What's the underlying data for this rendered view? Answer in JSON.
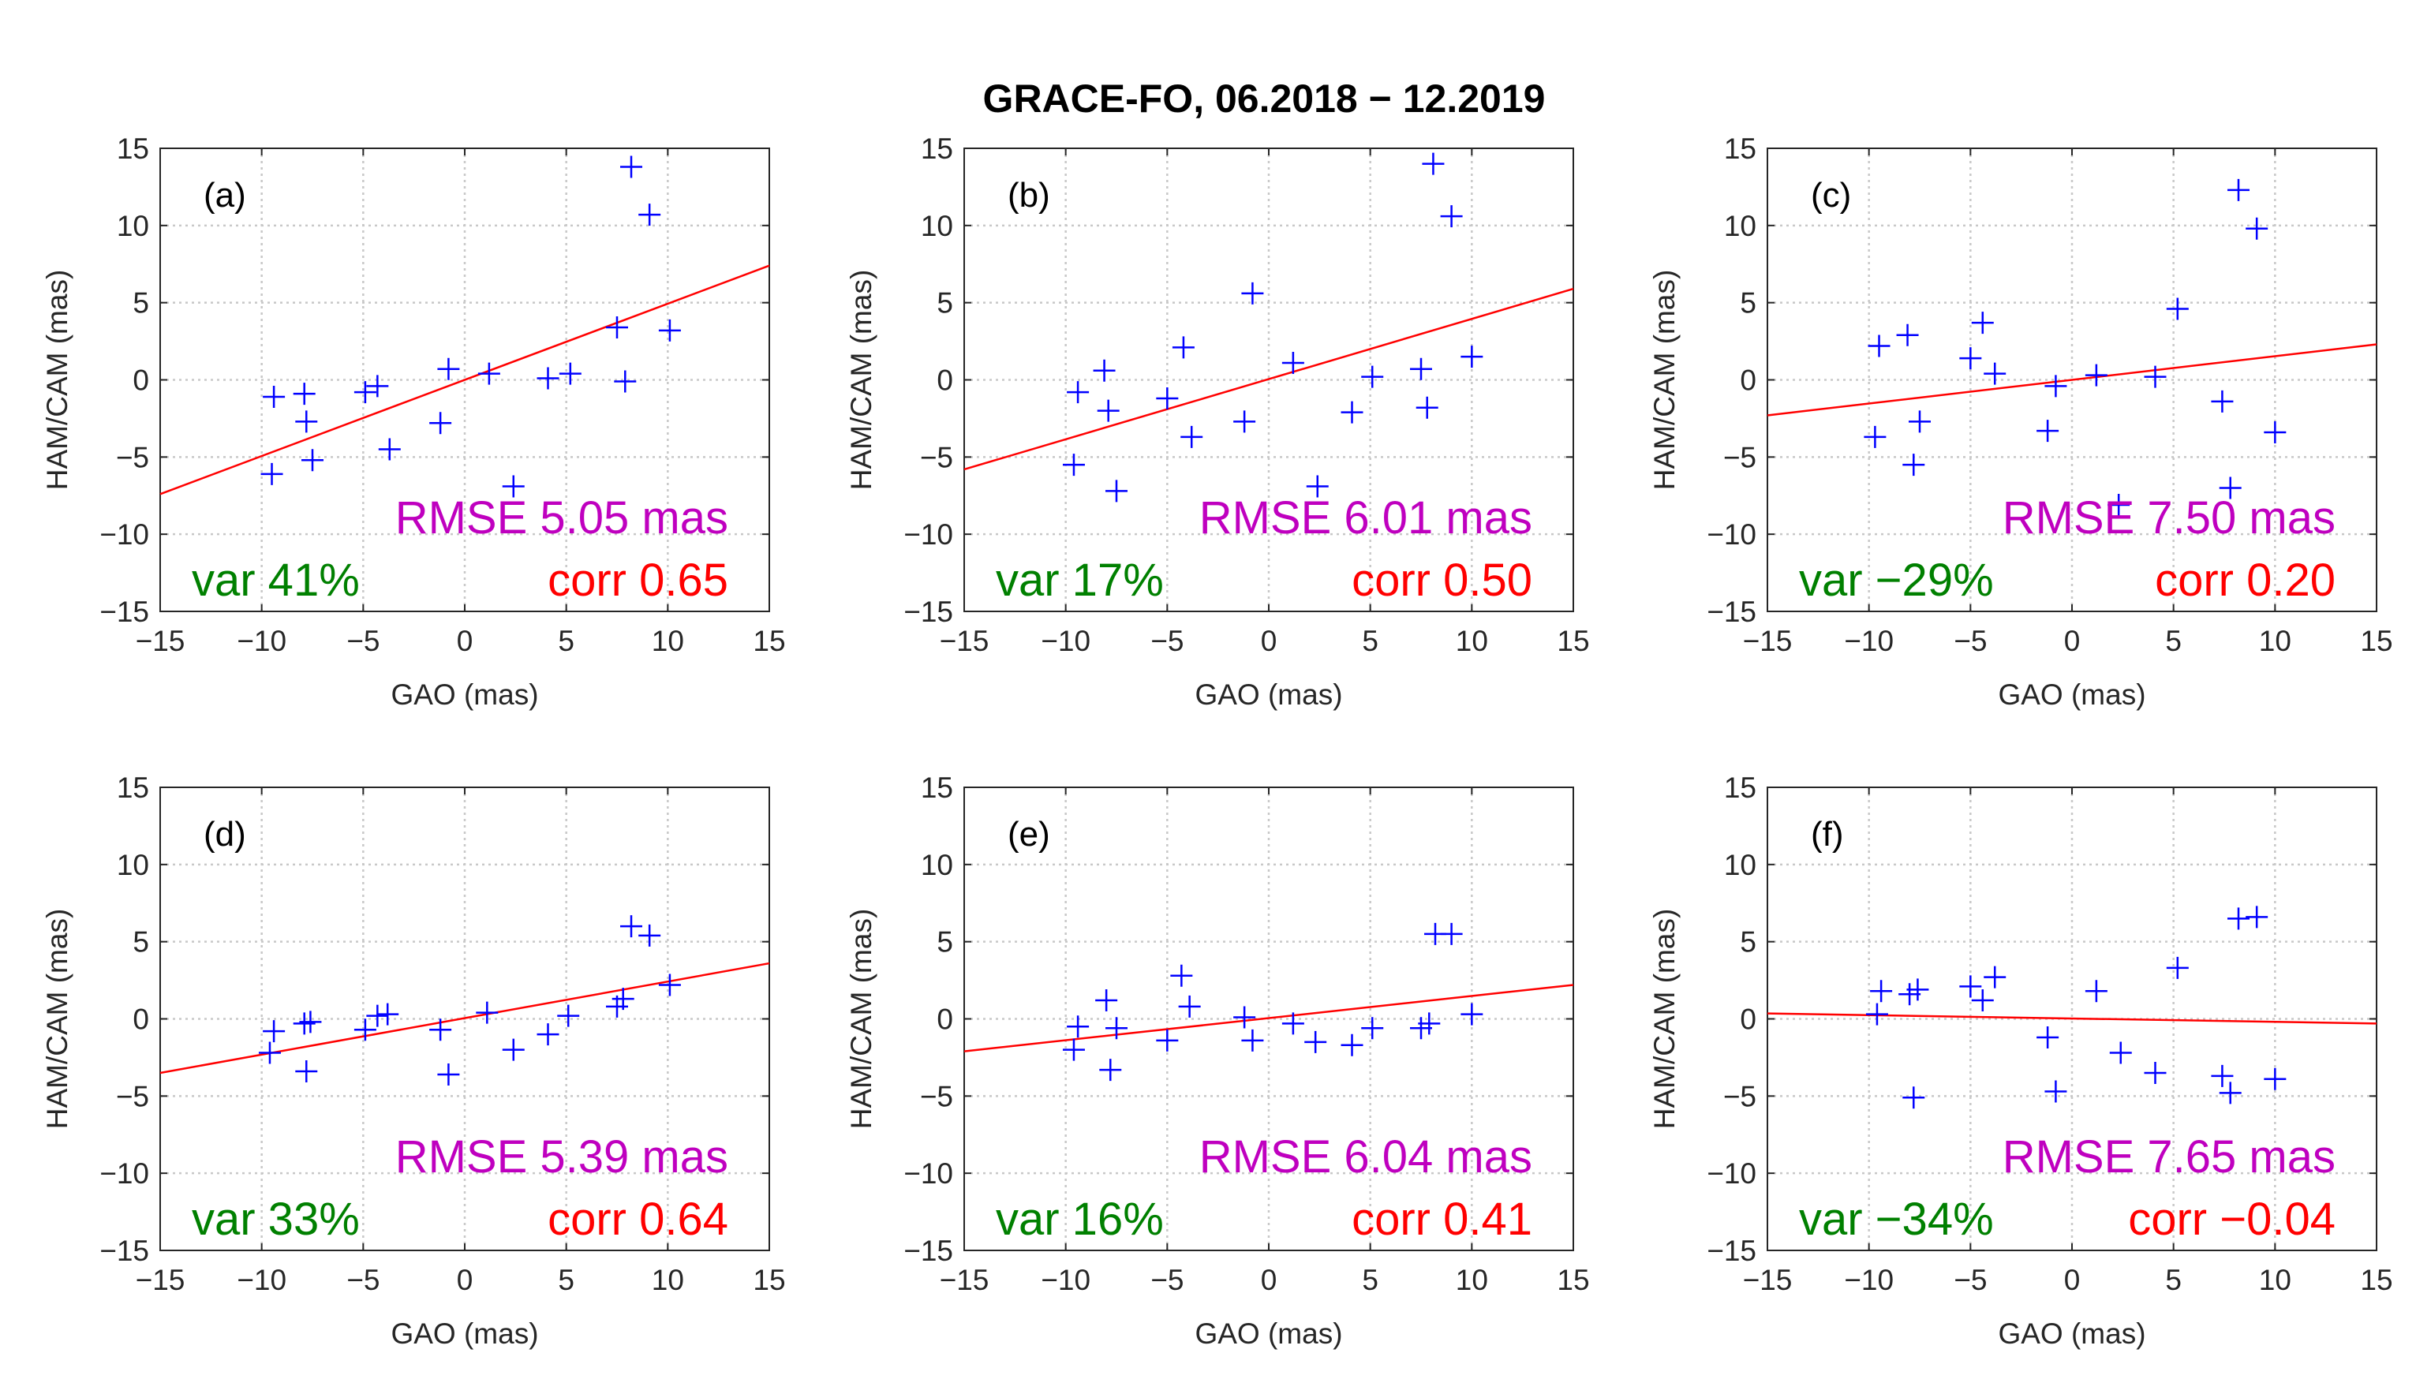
{
  "figure": {
    "title": "GRACE-FO, 06.2018 − 12.2019",
    "colors": {
      "points": "#0000ff",
      "fit": "#ff0000",
      "rmse": "#bf00bf",
      "var": "#008000",
      "corr": "#ff0000",
      "grid": "#c8c8c8",
      "axis": "#262626"
    }
  },
  "chart_data": [
    {
      "type": "scatter",
      "panel": "(a)",
      "xlabel": "GAO (mas)",
      "ylabel": "HAM/CAM (mas)",
      "xlim": [
        -15,
        15
      ],
      "ylim": [
        -15,
        15
      ],
      "xticks": [
        -15,
        -10,
        -5,
        0,
        5,
        10,
        15
      ],
      "yticks": [
        -15,
        -10,
        -5,
        0,
        5,
        10,
        15
      ],
      "grid": true,
      "points": [
        [
          -9.5,
          -6.1
        ],
        [
          -9.4,
          -1.1
        ],
        [
          -7.9,
          -0.9
        ],
        [
          -7.8,
          -2.7
        ],
        [
          -7.5,
          -5.2
        ],
        [
          -4.9,
          -0.8
        ],
        [
          -4.3,
          -0.4
        ],
        [
          -3.7,
          -4.5
        ],
        [
          -1.2,
          -2.8
        ],
        [
          -0.8,
          0.7
        ],
        [
          1.2,
          0.4
        ],
        [
          2.4,
          -6.9
        ],
        [
          4.1,
          0.1
        ],
        [
          5.2,
          0.4
        ],
        [
          7.5,
          3.4
        ],
        [
          7.9,
          -0.1
        ],
        [
          8.2,
          13.8
        ],
        [
          9.1,
          10.7
        ],
        [
          10.1,
          3.2
        ]
      ],
      "fit": {
        "x": [
          -15,
          15
        ],
        "y": [
          -7.4,
          7.4
        ]
      },
      "rmse": "RMSE 5.05 mas",
      "var": "var 41%",
      "corr": "corr 0.65"
    },
    {
      "type": "scatter",
      "panel": "(b)",
      "xlabel": "GAO (mas)",
      "ylabel": "HAM/CAM (mas)",
      "xlim": [
        -15,
        15
      ],
      "ylim": [
        -15,
        15
      ],
      "xticks": [
        -15,
        -10,
        -5,
        0,
        5,
        10,
        15
      ],
      "yticks": [
        -15,
        -10,
        -5,
        0,
        5,
        10,
        15
      ],
      "grid": true,
      "points": [
        [
          -9.6,
          -5.5
        ],
        [
          -9.4,
          -0.8
        ],
        [
          -8.1,
          0.6
        ],
        [
          -7.9,
          -2.0
        ],
        [
          -7.5,
          -7.2
        ],
        [
          -5.0,
          -1.2
        ],
        [
          -4.2,
          2.1
        ],
        [
          -3.8,
          -3.7
        ],
        [
          -1.2,
          -2.7
        ],
        [
          -0.8,
          5.6
        ],
        [
          1.2,
          1.1
        ],
        [
          2.4,
          -6.9
        ],
        [
          4.1,
          -2.1
        ],
        [
          5.1,
          0.2
        ],
        [
          7.5,
          0.7
        ],
        [
          7.8,
          -1.8
        ],
        [
          8.1,
          14.0
        ],
        [
          9.0,
          10.6
        ],
        [
          10.0,
          1.5
        ]
      ],
      "fit": {
        "x": [
          -15,
          15
        ],
        "y": [
          -5.8,
          5.9
        ]
      },
      "rmse": "RMSE 6.01 mas",
      "var": "var 17%",
      "corr": "corr 0.50"
    },
    {
      "type": "scatter",
      "panel": "(c)",
      "xlabel": "GAO (mas)",
      "ylabel": "HAM/CAM (mas)",
      "xlim": [
        -15,
        15
      ],
      "ylim": [
        -15,
        15
      ],
      "xticks": [
        -15,
        -10,
        -5,
        0,
        5,
        10,
        15
      ],
      "yticks": [
        -15,
        -10,
        -5,
        0,
        5,
        10,
        15
      ],
      "grid": true,
      "points": [
        [
          -9.7,
          -3.7
        ],
        [
          -9.5,
          2.2
        ],
        [
          -8.1,
          2.9
        ],
        [
          -7.8,
          -5.5
        ],
        [
          -7.5,
          -2.7
        ],
        [
          -5.0,
          1.4
        ],
        [
          -4.4,
          3.7
        ],
        [
          -3.8,
          0.4
        ],
        [
          -1.2,
          -3.3
        ],
        [
          -0.8,
          -0.4
        ],
        [
          1.2,
          0.3
        ],
        [
          2.3,
          -8.1
        ],
        [
          4.1,
          0.2
        ],
        [
          5.2,
          4.6
        ],
        [
          7.4,
          -1.4
        ],
        [
          7.8,
          -7.0
        ],
        [
          8.2,
          12.3
        ],
        [
          9.1,
          9.8
        ],
        [
          10.0,
          -3.4
        ]
      ],
      "fit": {
        "x": [
          -15,
          15
        ],
        "y": [
          -2.3,
          2.3
        ]
      },
      "rmse": "RMSE 7.50 mas",
      "var": "var −29%",
      "corr": "corr 0.20"
    },
    {
      "type": "scatter",
      "panel": "(d)",
      "xlabel": "GAO (mas)",
      "ylabel": "HAM/CAM (mas)",
      "xlim": [
        -15,
        15
      ],
      "ylim": [
        -15,
        15
      ],
      "xticks": [
        -15,
        -10,
        -5,
        0,
        5,
        10,
        15
      ],
      "yticks": [
        -15,
        -10,
        -5,
        0,
        5,
        10,
        15
      ],
      "grid": true,
      "points": [
        [
          -9.6,
          -2.2
        ],
        [
          -9.4,
          -0.8
        ],
        [
          -7.9,
          -0.3
        ],
        [
          -7.6,
          -0.2
        ],
        [
          -7.8,
          -3.4
        ],
        [
          -4.9,
          -0.7
        ],
        [
          -4.3,
          0.2
        ],
        [
          -3.8,
          0.3
        ],
        [
          -1.2,
          -0.7
        ],
        [
          -0.8,
          -3.6
        ],
        [
          1.1,
          0.4
        ],
        [
          2.4,
          -2.0
        ],
        [
          4.1,
          -1.0
        ],
        [
          5.1,
          0.2
        ],
        [
          7.5,
          0.8
        ],
        [
          7.8,
          1.3
        ],
        [
          8.2,
          6.0
        ],
        [
          9.1,
          5.4
        ],
        [
          10.1,
          2.2
        ]
      ],
      "fit": {
        "x": [
          -15,
          15
        ],
        "y": [
          -3.5,
          3.6
        ]
      },
      "rmse": "RMSE 5.39 mas",
      "var": "var 33%",
      "corr": "corr 0.64"
    },
    {
      "type": "scatter",
      "panel": "(e)",
      "xlabel": "GAO (mas)",
      "ylabel": "HAM/CAM (mas)",
      "xlim": [
        -15,
        15
      ],
      "ylim": [
        -15,
        15
      ],
      "xticks": [
        -15,
        -10,
        -5,
        0,
        5,
        10,
        15
      ],
      "yticks": [
        -15,
        -10,
        -5,
        0,
        5,
        10,
        15
      ],
      "grid": true,
      "points": [
        [
          -9.6,
          -2.0
        ],
        [
          -9.4,
          -0.5
        ],
        [
          -8.0,
          1.2
        ],
        [
          -7.8,
          -3.3
        ],
        [
          -7.5,
          -0.6
        ],
        [
          -5.0,
          -1.4
        ],
        [
          -4.3,
          2.8
        ],
        [
          -3.9,
          0.8
        ],
        [
          -1.2,
          0.1
        ],
        [
          -0.8,
          -1.4
        ],
        [
          1.2,
          -0.3
        ],
        [
          2.3,
          -1.5
        ],
        [
          4.1,
          -1.7
        ],
        [
          5.1,
          -0.6
        ],
        [
          7.5,
          -0.6
        ],
        [
          7.9,
          -0.3
        ],
        [
          8.2,
          5.5
        ],
        [
          9.0,
          5.5
        ],
        [
          10.0,
          0.3
        ]
      ],
      "fit": {
        "x": [
          -15,
          15
        ],
        "y": [
          -2.1,
          2.2
        ]
      },
      "rmse": "RMSE 6.04 mas",
      "var": "var 16%",
      "corr": "corr 0.41"
    },
    {
      "type": "scatter",
      "panel": "(f)",
      "xlabel": "GAO (mas)",
      "ylabel": "HAM/CAM (mas)",
      "xlim": [
        -15,
        15
      ],
      "ylim": [
        -15,
        15
      ],
      "xticks": [
        -15,
        -10,
        -5,
        0,
        5,
        10,
        15
      ],
      "yticks": [
        -15,
        -10,
        -5,
        0,
        5,
        10,
        15
      ],
      "grid": true,
      "points": [
        [
          -9.6,
          0.3
        ],
        [
          -9.4,
          1.8
        ],
        [
          -8.0,
          1.6
        ],
        [
          -7.6,
          1.9
        ],
        [
          -7.8,
          -5.1
        ],
        [
          -5.0,
          2.1
        ],
        [
          -4.4,
          1.2
        ],
        [
          -3.8,
          2.7
        ],
        [
          -1.2,
          -1.2
        ],
        [
          -0.8,
          -4.7
        ],
        [
          1.2,
          1.8
        ],
        [
          2.4,
          -2.2
        ],
        [
          4.1,
          -3.5
        ],
        [
          5.2,
          3.3
        ],
        [
          7.4,
          -3.7
        ],
        [
          7.8,
          -4.8
        ],
        [
          8.2,
          6.5
        ],
        [
          9.1,
          6.6
        ],
        [
          10.0,
          -3.9
        ]
      ],
      "fit": {
        "x": [
          -15,
          15
        ],
        "y": [
          0.35,
          -0.3
        ]
      },
      "rmse": "RMSE 7.65 mas",
      "var": "var −34%",
      "corr": "corr −0.04"
    }
  ]
}
